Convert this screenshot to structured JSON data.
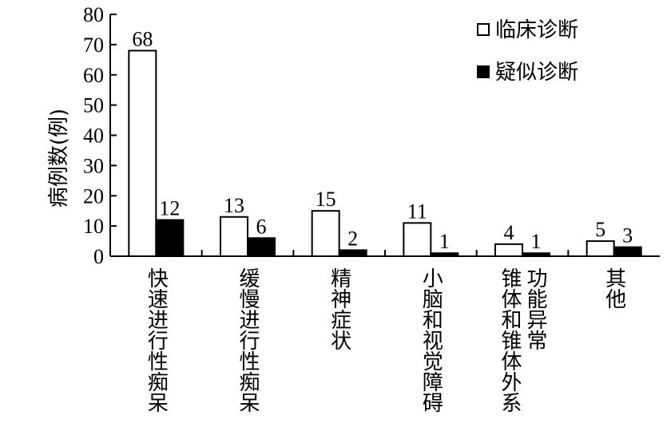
{
  "chart_data": {
    "type": "bar",
    "categories": [
      [
        "快速进行性痴呆"
      ],
      [
        "缓慢进行性痴呆"
      ],
      [
        "精神症状"
      ],
      [
        "小脑和视觉障碍"
      ],
      [
        "锥体和锥体外系",
        "功能异常"
      ],
      [
        "其他"
      ]
    ],
    "series": [
      {
        "name": "临床诊断",
        "values": [
          68,
          13,
          15,
          11,
          4,
          5
        ],
        "color": "#ffffff"
      },
      {
        "name": "疑似诊断",
        "values": [
          12,
          6,
          2,
          1,
          1,
          3
        ],
        "color": "#000000"
      }
    ],
    "ylabel": "病例数(例)",
    "ylim": [
      0,
      80
    ],
    "yticks": [
      0,
      10,
      20,
      30,
      40,
      50,
      60,
      70,
      80
    ],
    "legend_position": "top-right",
    "grid": false
  }
}
